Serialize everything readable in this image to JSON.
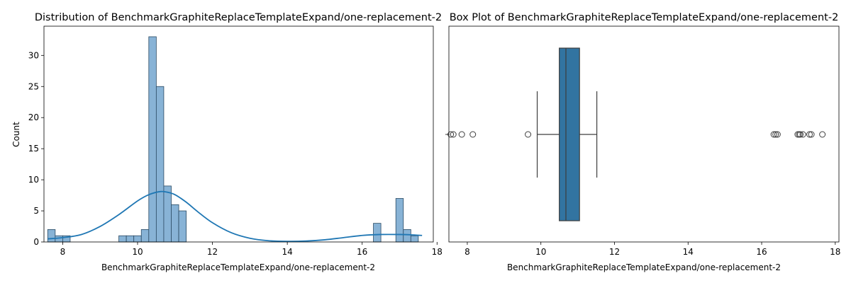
{
  "chart_data": [
    {
      "type": "bar",
      "subtype": "histogram-with-kde",
      "title": "Distribution of BenchmarkGraphiteReplaceTemplateExpand/one-replacement-2",
      "xlabel": "BenchmarkGraphiteReplaceTemplateExpand/one-replacement-2",
      "ylabel": "Count",
      "xlim": [
        7.5,
        17.9
      ],
      "ylim": [
        0,
        34.7
      ],
      "xticks": [
        8,
        10,
        12,
        14,
        16,
        18
      ],
      "yticks": [
        0,
        5,
        10,
        15,
        20,
        25,
        30
      ],
      "bin_width": 0.2,
      "bins": [
        {
          "x0": 7.6,
          "count": 2
        },
        {
          "x0": 7.8,
          "count": 1
        },
        {
          "x0": 8.0,
          "count": 1
        },
        {
          "x0": 9.5,
          "count": 1
        },
        {
          "x0": 9.7,
          "count": 1
        },
        {
          "x0": 9.9,
          "count": 1
        },
        {
          "x0": 10.1,
          "count": 2
        },
        {
          "x0": 10.3,
          "count": 33
        },
        {
          "x0": 10.5,
          "count": 25
        },
        {
          "x0": 10.7,
          "count": 9
        },
        {
          "x0": 10.9,
          "count": 6
        },
        {
          "x0": 11.1,
          "count": 5
        },
        {
          "x0": 16.3,
          "count": 3
        },
        {
          "x0": 16.9,
          "count": 7
        },
        {
          "x0": 17.1,
          "count": 2
        },
        {
          "x0": 17.3,
          "count": 1
        }
      ],
      "kde": {
        "x": [
          7.6,
          8.0,
          8.5,
          9.0,
          9.5,
          10.0,
          10.3,
          10.6,
          10.8,
          11.0,
          11.3,
          11.6,
          12.0,
          12.5,
          13.0,
          13.5,
          14.0,
          14.5,
          15.0,
          15.5,
          16.0,
          16.5,
          17.0,
          17.3,
          17.6
        ],
        "y": [
          0.5,
          0.7,
          1.2,
          2.5,
          4.4,
          6.6,
          7.6,
          8.1,
          8.0,
          7.6,
          6.4,
          4.9,
          3.1,
          1.5,
          0.6,
          0.2,
          0.1,
          0.15,
          0.35,
          0.7,
          1.05,
          1.2,
          1.2,
          1.15,
          1.05
        ]
      },
      "colors": {
        "bar_fill": "#88b3d6",
        "bar_edge": "#2b4a63",
        "kde": "#1f77b4"
      }
    },
    {
      "type": "box",
      "title": "Box Plot of BenchmarkGraphiteReplaceTemplateExpand/one-replacement-2",
      "xlabel": "BenchmarkGraphiteReplaceTemplateExpand/one-replacement-2",
      "xlim": [
        7.5,
        18.1
      ],
      "xticks": [
        8,
        10,
        12,
        14,
        16,
        18
      ],
      "q1": 10.5,
      "median": 10.68,
      "q3": 11.05,
      "whisker_low": 9.9,
      "whisker_high": 11.52,
      "outliers": [
        7.55,
        7.62,
        7.85,
        8.15,
        9.65,
        16.33,
        16.38,
        16.43,
        16.98,
        17.02,
        17.05,
        17.12,
        17.3,
        17.35,
        17.65
      ],
      "colors": {
        "box_fill": "#3274a1",
        "line": "#3d3d3d"
      }
    }
  ]
}
